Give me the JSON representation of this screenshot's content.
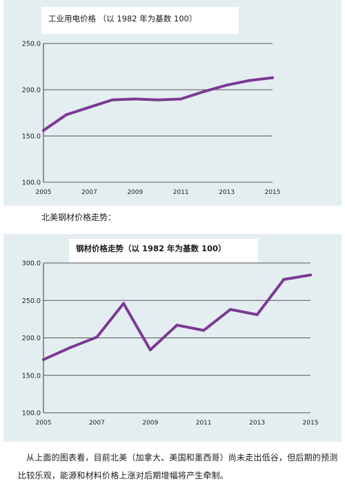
{
  "chart1_title": "工业用电价格 （以 1982 年为基数 100）",
  "section_caption": "北美钢材价格走势：",
  "chart2_title": "钢材价格走势（以 1982 年为基数 100）",
  "paragraph": "从上面的图表看，目前北美（加拿大、美国和墨西哥）尚未走出低谷，但后期的预测比较乐观，能源和材料价格上涨对后期增幅将产生牵制。",
  "colors": {
    "line": "#7b3a93",
    "panel_bg": "#e4edf0",
    "grid": "#555555"
  },
  "chart_data": [
    {
      "type": "line",
      "title": "工业用电价格 （以 1982 年为基数 100）",
      "x": [
        2005,
        2006,
        2007,
        2008,
        2009,
        2010,
        2011,
        2012,
        2013,
        2014,
        2015
      ],
      "series": [
        {
          "values": [
            156,
            173,
            181,
            189,
            190,
            189,
            190,
            198,
            205,
            210,
            213
          ]
        }
      ],
      "x_ticks": [
        "2005",
        "2007",
        "2009",
        "2011",
        "2013",
        "2015"
      ],
      "y_ticks": [
        "100.0",
        "150.0",
        "200.0",
        "250.0"
      ],
      "xlim": [
        2005,
        2015
      ],
      "ylim": [
        100,
        250
      ],
      "grid": "horizontal"
    },
    {
      "type": "line",
      "title": "钢材价格走势（以 1982 年为基数 100）",
      "x": [
        2005,
        2006,
        2007,
        2008,
        2009,
        2010,
        2011,
        2012,
        2013,
        2014,
        2015
      ],
      "series": [
        {
          "values": [
            171,
            187,
            201,
            246,
            184,
            217,
            210,
            238,
            231,
            278,
            284
          ]
        }
      ],
      "x_ticks": [
        "2005",
        "2007",
        "2009",
        "2011",
        "2013",
        "2015"
      ],
      "y_ticks": [
        "100.0",
        "150.0",
        "200.0",
        "250.0",
        "300.0"
      ],
      "xlim": [
        2005,
        2015
      ],
      "ylim": [
        100,
        300
      ],
      "grid": "horizontal"
    }
  ]
}
